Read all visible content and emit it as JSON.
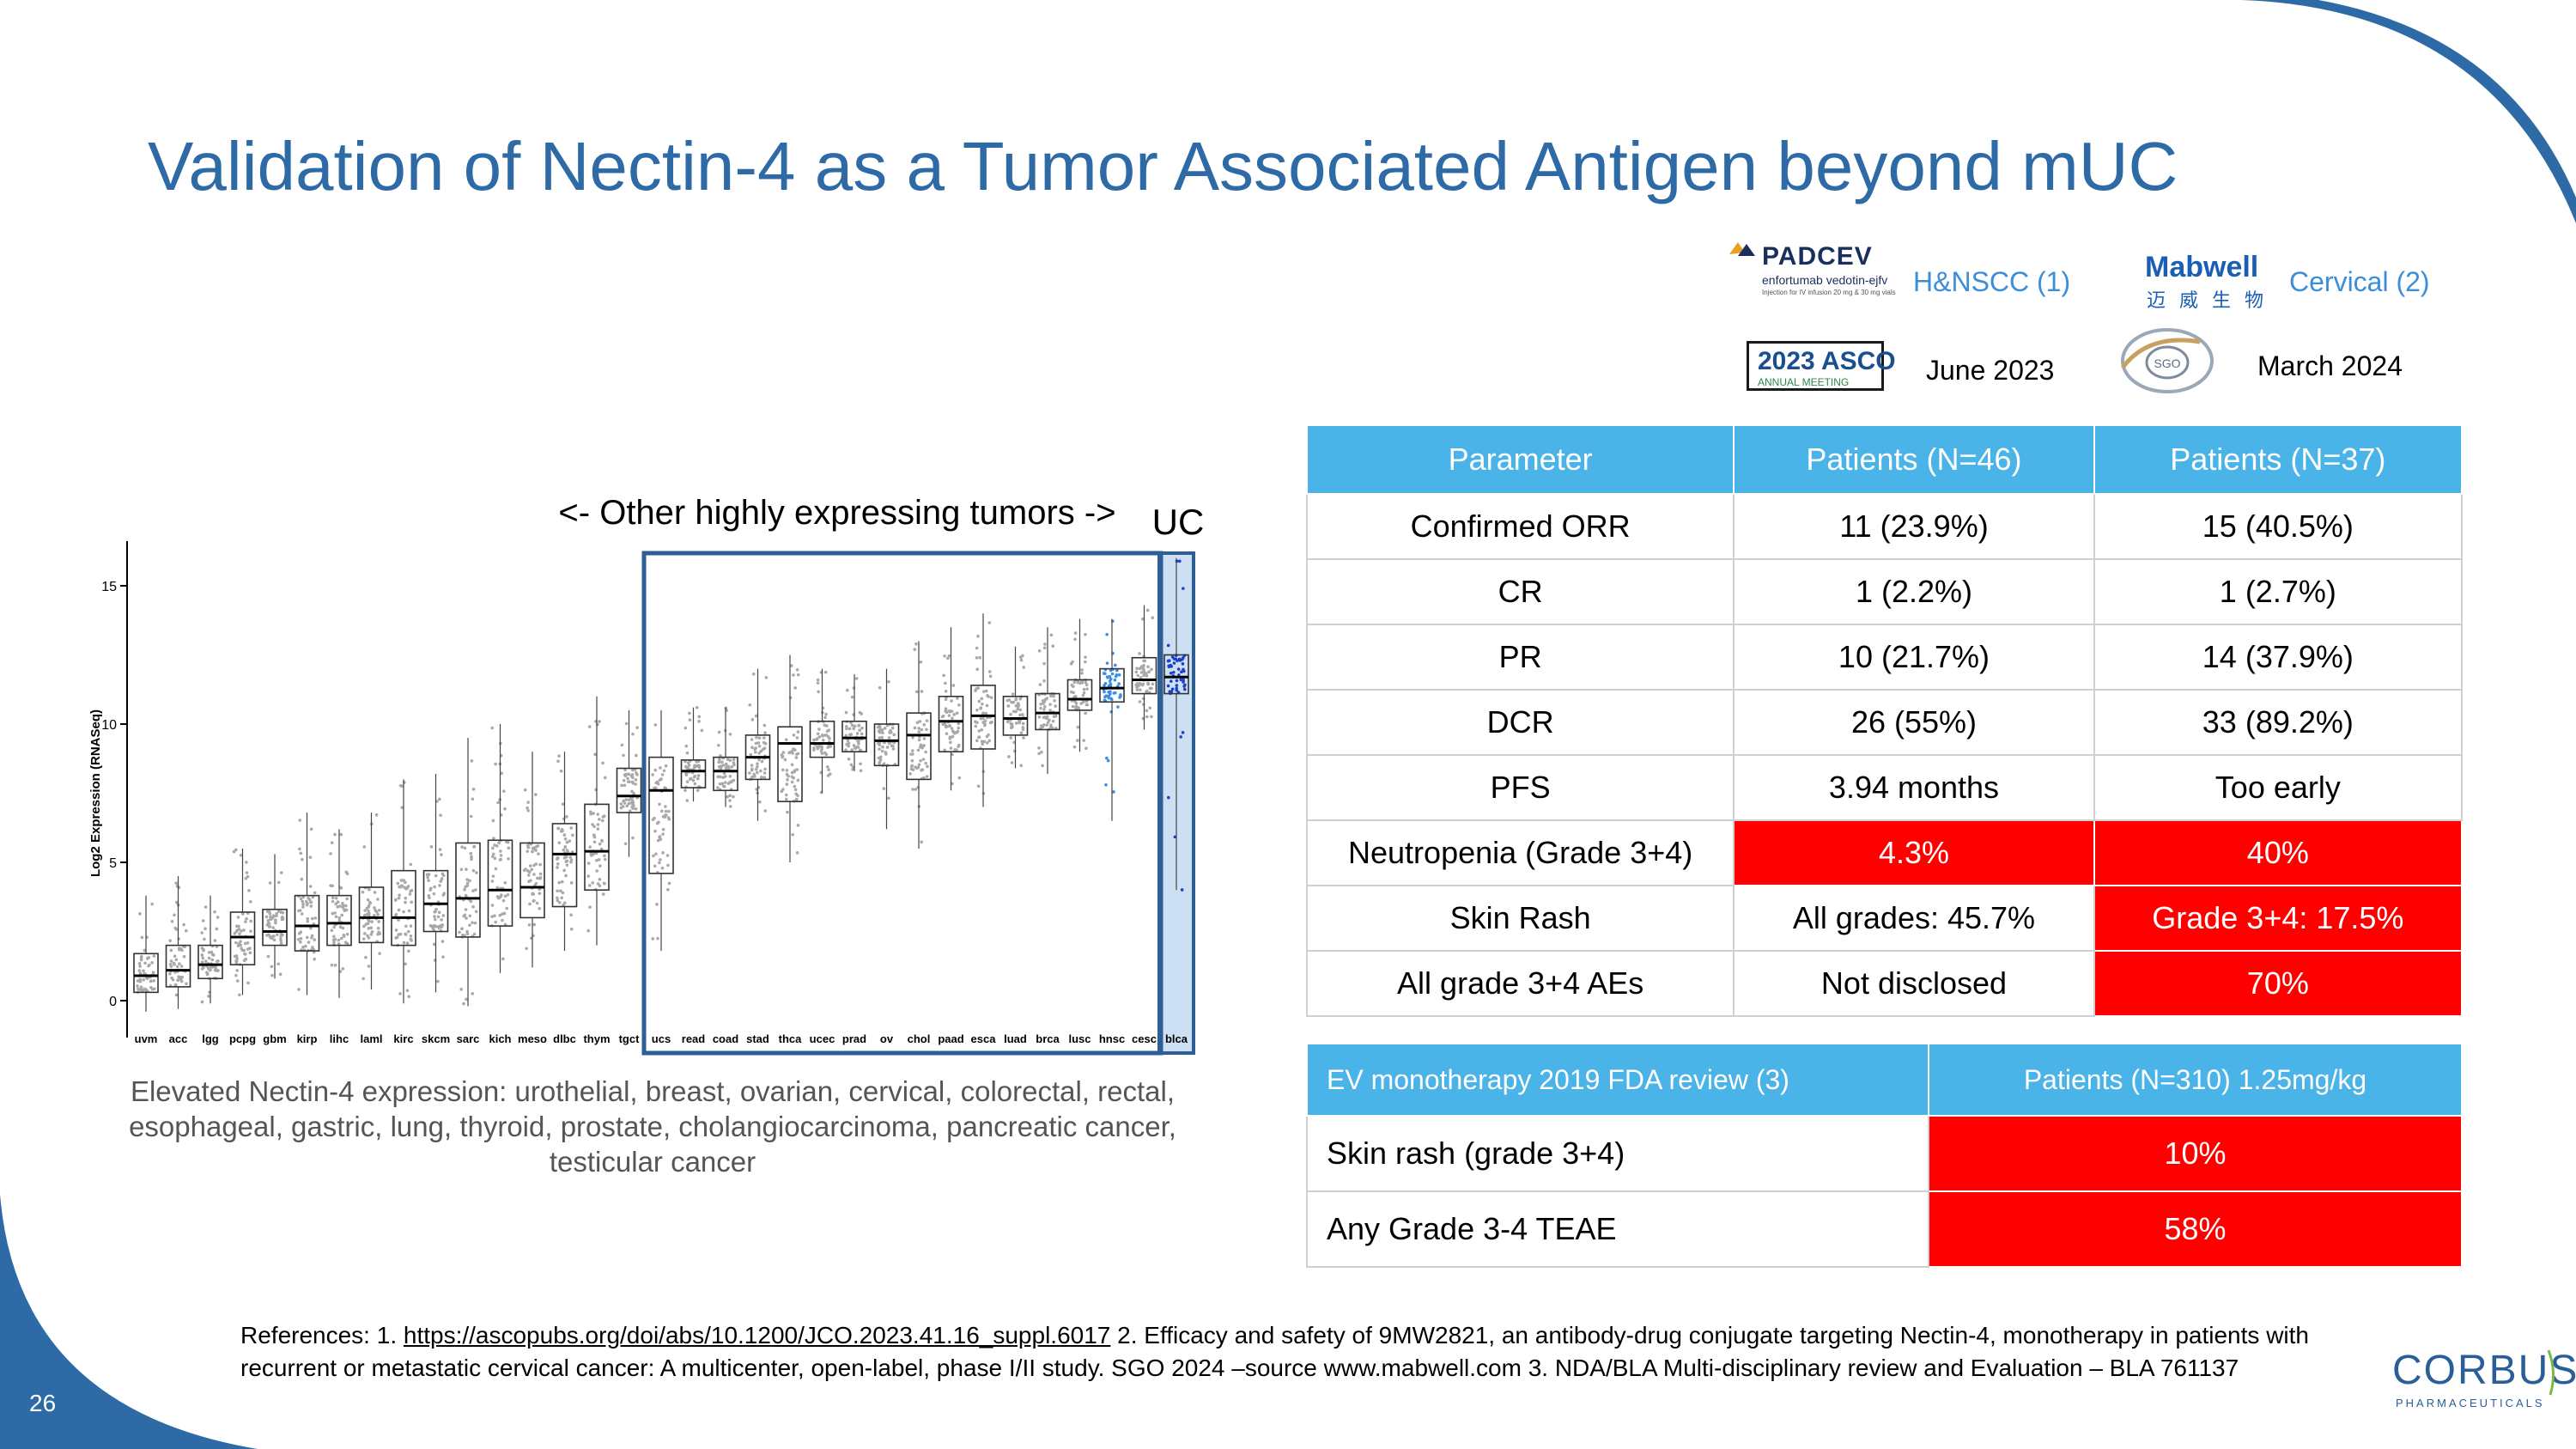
{
  "slide": {
    "title": "Validation of Nectin-4 as a Tumor Associated Antigen beyond mUC",
    "page_number": "26",
    "brand_color": "#2e6aa5",
    "accent_color": "#4ab3e8",
    "alert_color": "#ff0000"
  },
  "logos": {
    "padcev": {
      "name": "PADCEV",
      "sub": "enfortumab vedotin-ejfv",
      "tiny": "Injection for IV infusion 20 mg & 30 mg vials"
    },
    "mabwell": {
      "name": "Mabwell",
      "cn": "迈威生物"
    },
    "asco": {
      "name": "2023 ASCO",
      "sub": "ANNUAL MEETING"
    },
    "sgo": {
      "text": "SGO"
    },
    "corbus": {
      "name": "CORBUS",
      "sub": "PHARMACEUTICALS"
    }
  },
  "studies": {
    "hn_label": "H&NSCC (1)",
    "cervical_label": "Cervical (2)",
    "june_label": "June 2023",
    "march_label": "March 2024"
  },
  "chart_data": {
    "type": "box",
    "title": "",
    "annotation_other": "<- Other highly expressing tumors ->",
    "annotation_uc": "UC",
    "ylabel": "Log2 Expression (RNASeq)",
    "ylim": [
      -0.5,
      16
    ],
    "yticks": [
      0,
      5,
      10,
      15
    ],
    "categories": [
      "uvm",
      "acc",
      "lgg",
      "pcpg",
      "gbm",
      "kirp",
      "lihc",
      "laml",
      "kirc",
      "skcm",
      "sarc",
      "kich",
      "meso",
      "dlbc",
      "thym",
      "tgct",
      "ucs",
      "read",
      "coad",
      "stad",
      "thca",
      "ucec",
      "prad",
      "ov",
      "chol",
      "paad",
      "esca",
      "luad",
      "brca",
      "lusc",
      "hnsc",
      "cesc",
      "blca"
    ],
    "medians": [
      0.9,
      1.1,
      1.3,
      2.3,
      2.5,
      2.7,
      2.8,
      3.0,
      3.0,
      3.5,
      3.7,
      4.0,
      4.1,
      5.3,
      5.4,
      7.4,
      7.6,
      8.3,
      8.3,
      8.8,
      9.3,
      9.3,
      9.5,
      9.4,
      9.6,
      10.1,
      10.3,
      10.2,
      10.4,
      10.9,
      11.3,
      11.6,
      11.7
    ],
    "q1": [
      0.3,
      0.5,
      0.8,
      1.3,
      2.0,
      1.8,
      2.0,
      2.1,
      2.0,
      2.5,
      2.3,
      2.7,
      3.0,
      3.4,
      4.0,
      6.8,
      4.6,
      7.7,
      7.6,
      8.0,
      7.2,
      8.8,
      9.0,
      8.5,
      8.0,
      9.0,
      9.1,
      9.6,
      9.8,
      10.5,
      10.8,
      11.1,
      11.1
    ],
    "q3": [
      1.7,
      2.0,
      2.0,
      3.2,
      3.3,
      3.8,
      3.8,
      4.1,
      4.7,
      4.7,
      5.7,
      5.8,
      5.7,
      6.4,
      7.1,
      8.4,
      8.8,
      8.7,
      8.8,
      9.6,
      9.9,
      10.1,
      10.1,
      10.0,
      10.4,
      11.0,
      11.4,
      11.0,
      11.1,
      11.6,
      12.0,
      12.4,
      12.5
    ],
    "lower_whisker": [
      -0.4,
      -0.3,
      -0.1,
      0.2,
      0.8,
      0.2,
      0.1,
      0.4,
      -0.1,
      0.3,
      -0.2,
      1.0,
      1.2,
      1.8,
      2.0,
      5.2,
      1.8,
      7.2,
      7.0,
      6.5,
      5.0,
      7.5,
      8.3,
      6.2,
      5.5,
      7.6,
      7.0,
      8.4,
      8.2,
      9.0,
      6.5,
      9.8,
      4.0
    ],
    "upper_whisker": [
      3.8,
      4.5,
      3.8,
      5.5,
      5.3,
      6.8,
      6.2,
      6.8,
      8.0,
      8.2,
      9.5,
      10.0,
      9.0,
      9.0,
      11.0,
      10.5,
      10.5,
      10.6,
      10.6,
      12.0,
      12.5,
      12.0,
      11.8,
      12.0,
      13.0,
      13.5,
      14.0,
      12.8,
      13.5,
      13.8,
      13.8,
      14.3,
      16.0
    ],
    "highlight": {
      "blue": [
        "hnsc"
      ],
      "dark_blue": [
        "blca"
      ],
      "framed_range": [
        "ucs",
        "cesc"
      ],
      "shaded": [
        "blca"
      ]
    }
  },
  "chart_caption": "Elevated Nectin-4 expression: urothelial, breast, ovarian, cervical, colorectal, rectal, esophageal, gastric, lung, thyroid, prostate, cholangiocarcinoma, pancreatic cancer, testicular cancer",
  "table1": {
    "headers": [
      "Parameter",
      "Patients (N=46)",
      "Patients (N=37)"
    ],
    "rows": [
      {
        "param": "Confirmed ORR",
        "a": "11 (23.9%)",
        "b": "15 (40.5%)",
        "a_red": false,
        "b_red": false
      },
      {
        "param": "CR",
        "a": "1 (2.2%)",
        "b": "1 (2.7%)",
        "a_red": false,
        "b_red": false
      },
      {
        "param": "PR",
        "a": "10 (21.7%)",
        "b": "14 (37.9%)",
        "a_red": false,
        "b_red": false
      },
      {
        "param": "DCR",
        "a": "26 (55%)",
        "b": "33 (89.2%)",
        "a_red": false,
        "b_red": false
      },
      {
        "param": "PFS",
        "a": "3.94 months",
        "b": "Too early",
        "a_red": false,
        "b_red": false
      },
      {
        "param": "Neutropenia (Grade 3+4)",
        "a": "4.3%",
        "b": "40%",
        "a_red": true,
        "b_red": true
      },
      {
        "param": "Skin Rash",
        "a": "All grades: 45.7%",
        "b": "Grade 3+4: 17.5%",
        "a_red": false,
        "b_red": true
      },
      {
        "param": "All grade 3+4 AEs",
        "a": "Not disclosed",
        "b": "70%",
        "a_red": false,
        "b_red": true
      }
    ]
  },
  "table2": {
    "headers": [
      "EV monotherapy 2019 FDA review (3)",
      "Patients (N=310) 1.25mg/kg"
    ],
    "rows": [
      {
        "param": "Skin rash (grade 3+4)",
        "value": "10%"
      },
      {
        "param": "Any Grade 3-4 TEAE",
        "value": "58%"
      }
    ]
  },
  "references": {
    "prefix": "References: 1. ",
    "link": "https://ascopubs.org/doi/abs/10.1200/JCO.2023.41.16_suppl.6017",
    "rest": " 2. Efficacy and safety of 9MW2821, an antibody-drug conjugate targeting Nectin-4, monotherapy in patients with recurrent or metastatic cervical cancer: A multicenter, open-label, phase I/II study. SGO 2024 –source  www.mabwell.com 3. NDA/BLA Multi-disciplinary review and Evaluation – BLA 761137"
  }
}
